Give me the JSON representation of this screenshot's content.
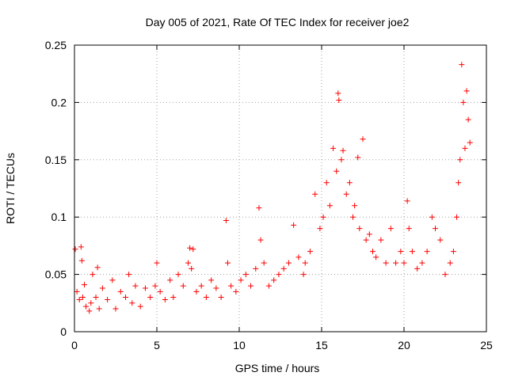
{
  "chart_data": {
    "type": "scatter",
    "title": "Day 005 of 2021, Rate Of TEC Index for receiver joe2",
    "xlabel": "GPS time / hours",
    "ylabel": "ROTI / TECUs",
    "xlim": [
      0,
      25
    ],
    "ylim": [
      0,
      0.25
    ],
    "x_ticks": [
      0,
      5,
      10,
      15,
      20,
      25
    ],
    "x_tick_labels": [
      "0",
      "5",
      "10",
      "15",
      "20",
      "25"
    ],
    "y_ticks": [
      0,
      0.05,
      0.1,
      0.15,
      0.2,
      0.25
    ],
    "y_tick_labels": [
      "0",
      "0.05",
      "0.1",
      "0.15",
      "0.2",
      "0.25"
    ],
    "grid": true,
    "marker": "+",
    "color": "#ff0000",
    "series": [
      {
        "name": "ROTI",
        "x": [
          0.05,
          0.15,
          0.3,
          0.4,
          0.45,
          0.5,
          0.6,
          0.7,
          0.9,
          1.0,
          1.1,
          1.3,
          1.4,
          1.5,
          1.7,
          2.0,
          2.3,
          2.5,
          2.8,
          3.1,
          3.3,
          3.5,
          3.7,
          4.0,
          4.3,
          4.6,
          4.9,
          5.0,
          5.2,
          5.5,
          5.8,
          6.0,
          6.3,
          6.6,
          6.9,
          7.0,
          7.1,
          7.2,
          7.4,
          7.7,
          8.0,
          8.3,
          8.6,
          8.9,
          9.2,
          9.3,
          9.5,
          9.8,
          10.1,
          10.4,
          10.7,
          11.0,
          11.2,
          11.3,
          11.5,
          11.8,
          12.1,
          12.4,
          12.7,
          13.0,
          13.3,
          13.6,
          13.9,
          14.0,
          14.3,
          14.6,
          14.9,
          15.1,
          15.3,
          15.5,
          15.7,
          15.9,
          16.0,
          16.05,
          16.2,
          16.3,
          16.5,
          16.7,
          16.9,
          17.0,
          17.2,
          17.3,
          17.5,
          17.7,
          17.9,
          18.1,
          18.3,
          18.6,
          18.9,
          19.2,
          19.5,
          19.8,
          20.0,
          20.2,
          20.3,
          20.5,
          20.8,
          21.1,
          21.4,
          21.7,
          21.9,
          22.2,
          22.5,
          22.8,
          23.0,
          23.2,
          23.3,
          23.4,
          23.5,
          23.6,
          23.7,
          23.8,
          23.9,
          24.0
        ],
        "y": [
          0.072,
          0.035,
          0.028,
          0.074,
          0.062,
          0.03,
          0.041,
          0.022,
          0.018,
          0.025,
          0.05,
          0.03,
          0.056,
          0.02,
          0.038,
          0.028,
          0.045,
          0.02,
          0.035,
          0.03,
          0.05,
          0.025,
          0.04,
          0.022,
          0.038,
          0.03,
          0.04,
          0.06,
          0.035,
          0.028,
          0.045,
          0.03,
          0.05,
          0.04,
          0.06,
          0.073,
          0.055,
          0.072,
          0.035,
          0.04,
          0.03,
          0.045,
          0.038,
          0.03,
          0.097,
          0.06,
          0.04,
          0.035,
          0.045,
          0.05,
          0.04,
          0.055,
          0.108,
          0.08,
          0.06,
          0.04,
          0.045,
          0.05,
          0.055,
          0.06,
          0.093,
          0.065,
          0.05,
          0.06,
          0.07,
          0.12,
          0.09,
          0.1,
          0.13,
          0.11,
          0.16,
          0.14,
          0.208,
          0.202,
          0.15,
          0.158,
          0.12,
          0.13,
          0.1,
          0.11,
          0.152,
          0.09,
          0.168,
          0.08,
          0.085,
          0.07,
          0.065,
          0.08,
          0.06,
          0.09,
          0.06,
          0.07,
          0.06,
          0.114,
          0.09,
          0.07,
          0.055,
          0.06,
          0.07,
          0.1,
          0.09,
          0.08,
          0.05,
          0.06,
          0.07,
          0.1,
          0.13,
          0.15,
          0.233,
          0.2,
          0.16,
          0.21,
          0.185,
          0.165
        ]
      }
    ]
  }
}
